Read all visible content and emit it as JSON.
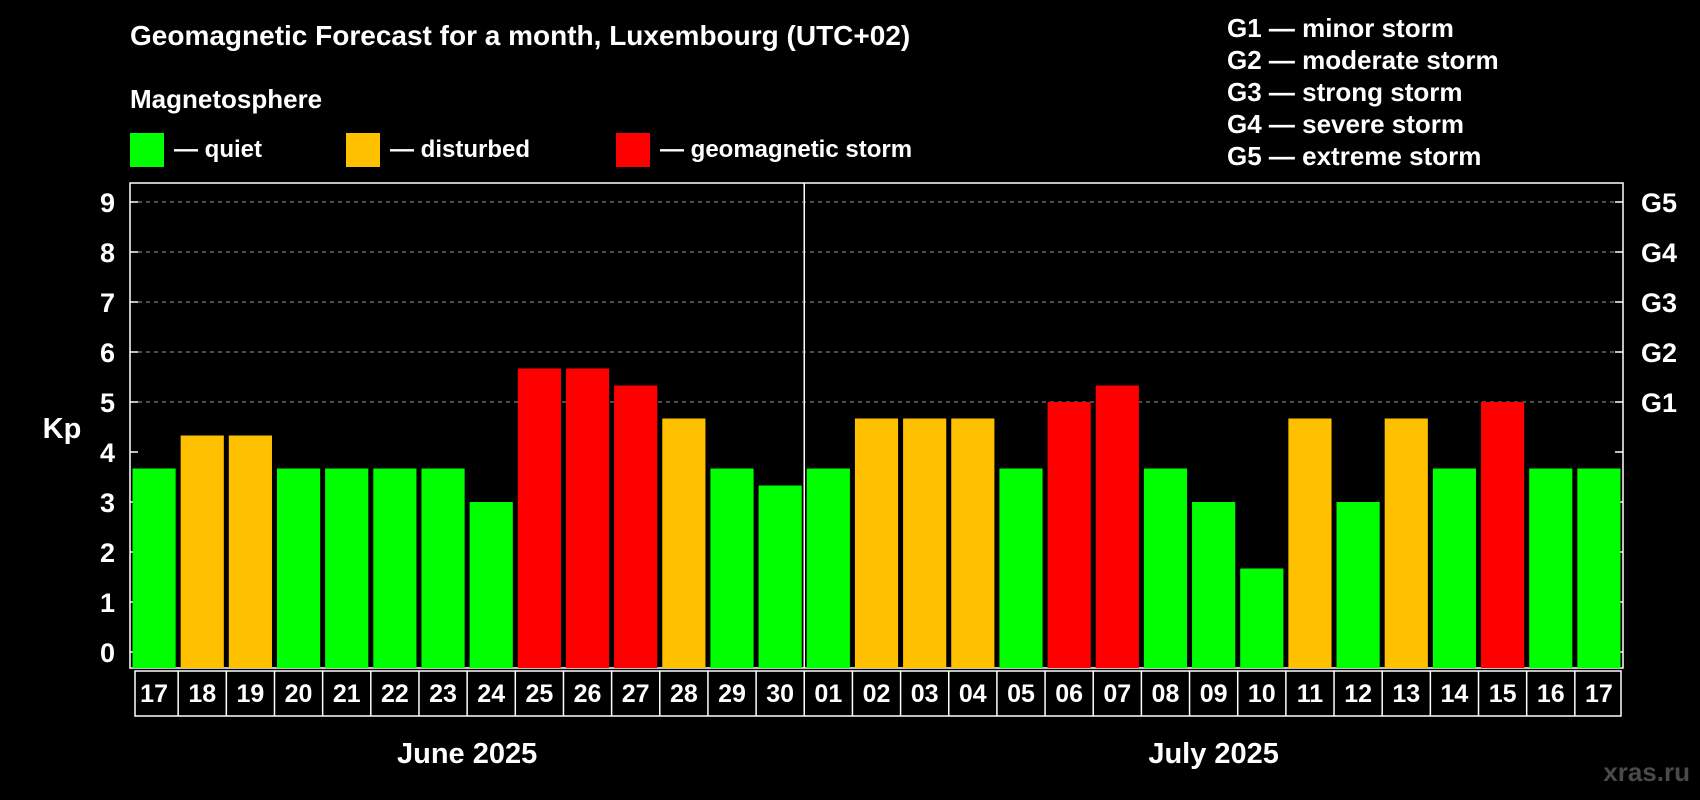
{
  "header": {
    "title": "Geomagnetic Forecast for a month, Luxembourg (UTC+02)",
    "section_label": "Magnetosphere"
  },
  "legend": [
    {
      "label": "— quiet",
      "color": "#00ff00"
    },
    {
      "label": "— disturbed",
      "color": "#ffc000"
    },
    {
      "label": "— geomagnetic storm",
      "color": "#ff0000"
    }
  ],
  "g_scale": [
    "G1 — minor storm",
    "G2 — moderate storm",
    "G3 — strong storm",
    "G4 — severe storm",
    "G5 — extreme storm"
  ],
  "watermark": "xras.ru",
  "chart_data": {
    "type": "bar",
    "title": "Geomagnetic Forecast for a month, Luxembourg (UTC+02)",
    "ylabel": "Kp",
    "ylim": [
      0,
      9
    ],
    "yticks": [
      "0",
      "1",
      "2",
      "3",
      "4",
      "5",
      "6",
      "7",
      "8",
      "9"
    ],
    "right_axis": [
      {
        "kp": 5,
        "label": "G1"
      },
      {
        "kp": 6,
        "label": "G2"
      },
      {
        "kp": 7,
        "label": "G3"
      },
      {
        "kp": 8,
        "label": "G4"
      },
      {
        "kp": 9,
        "label": "G5"
      }
    ],
    "grid": "dashed horizontal at Kp 5-9",
    "categories": [
      "17",
      "18",
      "19",
      "20",
      "21",
      "22",
      "23",
      "24",
      "25",
      "26",
      "27",
      "28",
      "29",
      "30",
      "01",
      "02",
      "03",
      "04",
      "05",
      "06",
      "07",
      "08",
      "09",
      "10",
      "11",
      "12",
      "13",
      "14",
      "15",
      "16",
      "17"
    ],
    "values": [
      3.67,
      4.33,
      4.33,
      3.67,
      3.67,
      3.67,
      3.67,
      3,
      5.67,
      5.67,
      5.33,
      4.67,
      3.67,
      3.33,
      3.67,
      4.67,
      4.67,
      4.67,
      3.67,
      5,
      5.33,
      3.67,
      3,
      1.67,
      4.67,
      3,
      4.67,
      3.67,
      5,
      3.67,
      3.67
    ],
    "levels": [
      "quiet",
      "disturbed",
      "disturbed",
      "quiet",
      "quiet",
      "quiet",
      "quiet",
      "quiet",
      "storm",
      "storm",
      "storm",
      "disturbed",
      "quiet",
      "quiet",
      "quiet",
      "disturbed",
      "disturbed",
      "disturbed",
      "quiet",
      "storm",
      "storm",
      "quiet",
      "quiet",
      "quiet",
      "disturbed",
      "quiet",
      "disturbed",
      "quiet",
      "storm",
      "quiet",
      "quiet"
    ],
    "level_colors": {
      "quiet": "#00ff00",
      "disturbed": "#ffc000",
      "storm": "#ff0000"
    },
    "months": [
      {
        "label": "June 2025",
        "days": 14
      },
      {
        "label": "July 2025",
        "days": 17
      }
    ]
  }
}
